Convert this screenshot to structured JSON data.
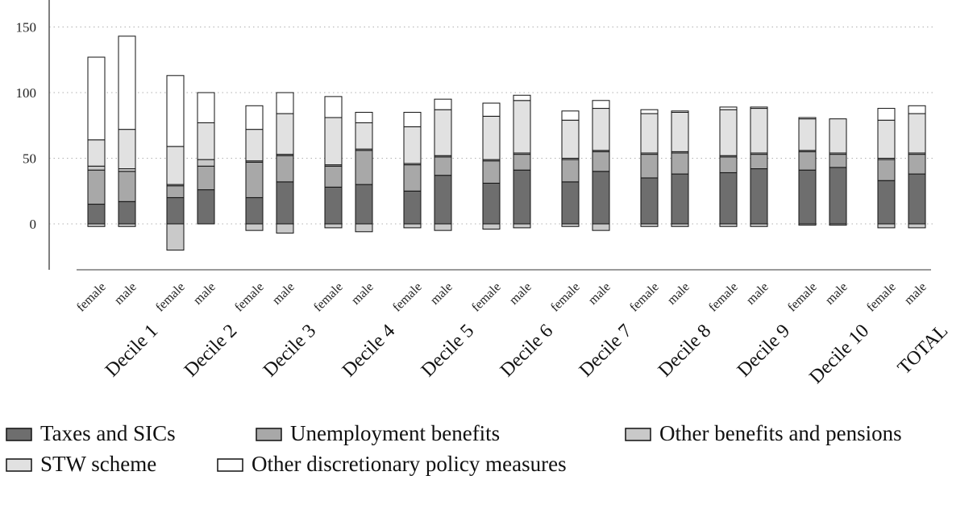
{
  "chart_data": {
    "type": "bar",
    "stacked": true,
    "groups": [
      "Decile 1",
      "Decile 2",
      "Decile 3",
      "Decile 4",
      "Decile 5",
      "Decile 6",
      "Decile 7",
      "Decile 8",
      "Decile 9",
      "Decile 10",
      "TOTAL"
    ],
    "subcategories": [
      "female",
      "male"
    ],
    "ylim": [
      -20,
      165
    ],
    "yticks": [
      0,
      50,
      100,
      150
    ],
    "grid": "horizontal dotted",
    "legend": "bottom",
    "series": [
      {
        "name": "Taxes and SICs",
        "color": "#6e6e6e",
        "values": [
          [
            15,
            17
          ],
          [
            20,
            26
          ],
          [
            20,
            32
          ],
          [
            28,
            30
          ],
          [
            25,
            37
          ],
          [
            31,
            41
          ],
          [
            32,
            40
          ],
          [
            35,
            38
          ],
          [
            39,
            42
          ],
          [
            41,
            43
          ],
          [
            33,
            38
          ]
        ]
      },
      {
        "name": "Unemployment benefits",
        "color": "#a8a8a8",
        "values": [
          [
            26,
            23
          ],
          [
            9,
            18
          ],
          [
            27,
            20
          ],
          [
            16,
            26
          ],
          [
            20,
            14
          ],
          [
            17,
            12
          ],
          [
            17,
            15
          ],
          [
            18,
            16
          ],
          [
            12,
            11
          ],
          [
            14,
            10
          ],
          [
            16,
            15
          ]
        ]
      },
      {
        "name": "Other benefits and pensions",
        "color": "#c9c9c9",
        "values": [
          [
            [
              -2,
              3
            ],
            [
              -2,
              2
            ]
          ],
          [
            [
              -20,
              1
            ],
            [
              0,
              5
            ]
          ],
          [
            [
              -5,
              1
            ],
            [
              -7,
              1
            ]
          ],
          [
            [
              -3,
              1
            ],
            [
              -6,
              1
            ]
          ],
          [
            [
              -3,
              1
            ],
            [
              -5,
              1
            ]
          ],
          [
            [
              -4,
              1
            ],
            [
              -3,
              1
            ]
          ],
          [
            [
              -2,
              1
            ],
            [
              -5,
              1
            ]
          ],
          [
            [
              -2,
              1
            ],
            [
              -2,
              1
            ]
          ],
          [
            [
              -2,
              1
            ],
            [
              -2,
              1
            ]
          ],
          [
            [
              -1,
              1
            ],
            [
              -1,
              1
            ]
          ],
          [
            [
              -3,
              1
            ],
            [
              -3,
              1
            ]
          ]
        ]
      },
      {
        "name": "STW scheme",
        "color": "#e1e1e1",
        "values": [
          [
            20,
            30
          ],
          [
            29,
            28
          ],
          [
            24,
            31
          ],
          [
            36,
            20
          ],
          [
            28,
            35
          ],
          [
            33,
            40
          ],
          [
            29,
            32
          ],
          [
            30,
            30
          ],
          [
            35,
            34
          ],
          [
            24,
            26
          ],
          [
            29,
            30
          ]
        ]
      },
      {
        "name": "Other discretionary policy measures",
        "color": "#ffffff",
        "values": [
          [
            63,
            71
          ],
          [
            54,
            23
          ],
          [
            18,
            16
          ],
          [
            16,
            8
          ],
          [
            11,
            8
          ],
          [
            10,
            4
          ],
          [
            7,
            6
          ],
          [
            3,
            1
          ],
          [
            2,
            1
          ],
          [
            1,
            0
          ],
          [
            9,
            6
          ]
        ]
      }
    ]
  }
}
